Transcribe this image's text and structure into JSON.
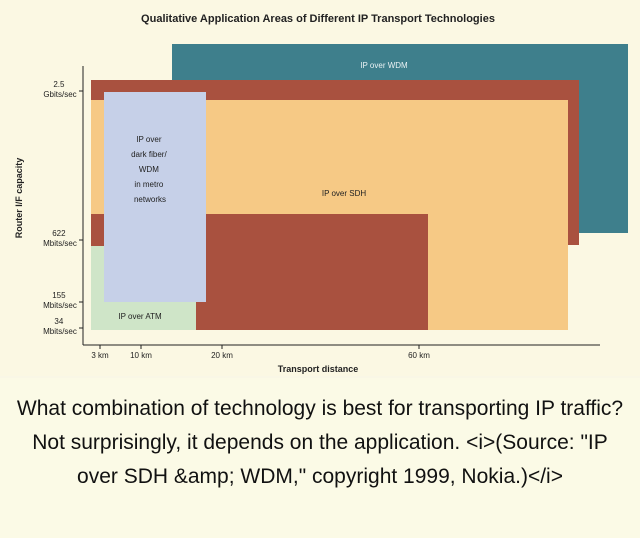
{
  "diagram": {
    "title": "Qualitative Application Areas of Different IP Transport Technologies",
    "y_axis_label": "Router I/F capacity",
    "x_axis_label": "Transport distance",
    "y_ticks": [
      {
        "line1": "2.5",
        "line2": "Gbits/sec"
      },
      {
        "line1": "622",
        "line2": "Mbits/sec"
      },
      {
        "line1": "155",
        "line2": "Mbits/sec"
      },
      {
        "line1": "34",
        "line2": "Mbits/sec"
      }
    ],
    "x_ticks": [
      "3 km",
      "10 km",
      "20 km",
      "60 km"
    ],
    "regions": {
      "wdm": {
        "label": "IP over WDM",
        "color": "#3e7f8c"
      },
      "sdh": {
        "label": "IP over SDH",
        "color": "#a9513f",
        "inner_color": "#f6c985"
      },
      "atm": {
        "label": "IP over ATM",
        "color": "#cfe5c8"
      },
      "dark_fiber": {
        "lines": [
          "IP over",
          "dark fiber/",
          "WDM",
          "in metro",
          "networks"
        ],
        "color": "#c6d0e8"
      }
    }
  },
  "caption": "What combination of technology is best for transporting IP traffic? Not surprisingly, it depends on the application. <i>(Source: \"IP over SDH &amp; WDM,\" copyright 1999, Nokia.)</i>"
}
